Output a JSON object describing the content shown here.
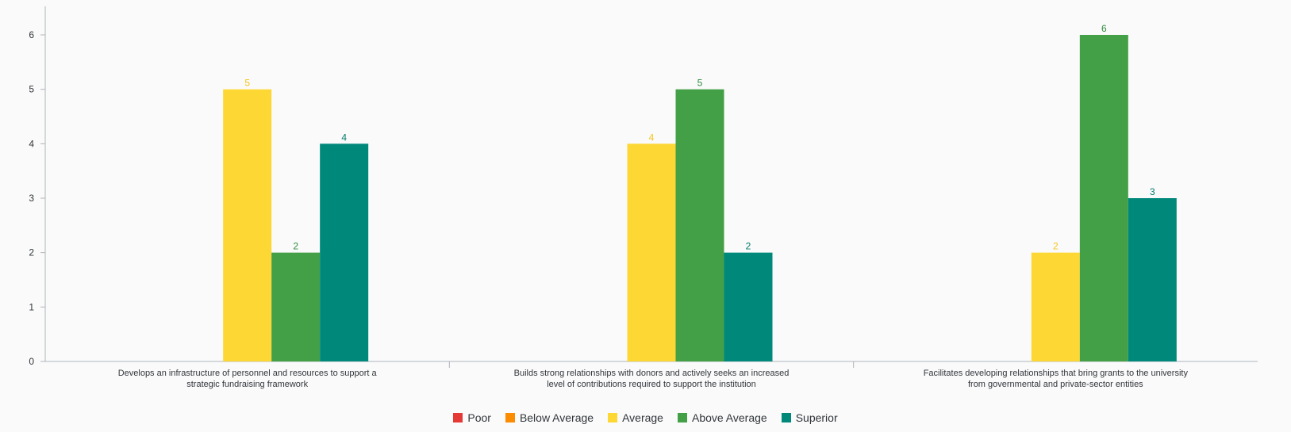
{
  "chart_data": {
    "type": "bar",
    "categories": [
      "Develops an infrastructure of personnel and resources to support a strategic fundraising framework",
      "Builds strong relationships with donors and actively seeks an increased level of contributions required to support the institution",
      "Facilitates developing relationships that bring grants to the university from governmental and private-sector entities"
    ],
    "category_label_lines": [
      [
        "Develops an infrastructure of personnel and resources to support a",
        "strategic fundraising framework"
      ],
      [
        "Builds strong relationships with donors and actively seeks an increased",
        "level of contributions required to support the institution"
      ],
      [
        "Facilitates developing relationships that bring grants to the university",
        "from governmental and private-sector entities"
      ]
    ],
    "series": [
      {
        "name": "Poor",
        "color": "#e53935",
        "values": [
          null,
          null,
          null
        ]
      },
      {
        "name": "Below Average",
        "color": "#fb8c00",
        "values": [
          null,
          null,
          null
        ]
      },
      {
        "name": "Average",
        "color": "#fdd835",
        "label_color": "#f5c518",
        "values": [
          5,
          4,
          2
        ]
      },
      {
        "name": "Above Average",
        "color": "#43a047",
        "label_color": "#2e8b3c",
        "values": [
          2,
          5,
          6
        ]
      },
      {
        "name": "Superior",
        "color": "#00897b",
        "label_color": "#00796b",
        "values": [
          4,
          2,
          3
        ]
      }
    ],
    "ylim": [
      0,
      6
    ],
    "yticks": [
      "0",
      "1",
      "2",
      "3",
      "4",
      "5",
      "6"
    ],
    "grid": false,
    "legend_position": "bottom"
  }
}
